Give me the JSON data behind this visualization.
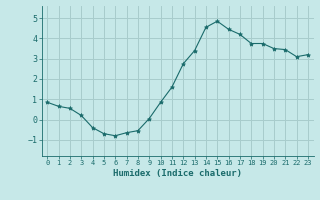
{
  "title": "",
  "xlabel": "Humidex (Indice chaleur)",
  "ylabel": "",
  "background_color": "#c6e8e8",
  "grid_color": "#a8cccc",
  "line_color": "#1a6b6b",
  "marker_color": "#1a6b6b",
  "xlim": [
    -0.5,
    23.5
  ],
  "ylim": [
    -1.8,
    5.6
  ],
  "yticks": [
    -1,
    0,
    1,
    2,
    3,
    4,
    5
  ],
  "xticks": [
    0,
    1,
    2,
    3,
    4,
    5,
    6,
    7,
    8,
    9,
    10,
    11,
    12,
    13,
    14,
    15,
    16,
    17,
    18,
    19,
    20,
    21,
    22,
    23
  ],
  "hours": [
    0,
    1,
    2,
    3,
    4,
    5,
    6,
    7,
    8,
    9,
    10,
    11,
    12,
    13,
    14,
    15,
    16,
    17,
    18,
    19,
    20,
    21,
    22,
    23
  ],
  "values": [
    0.85,
    0.65,
    0.55,
    0.2,
    -0.4,
    -0.7,
    -0.8,
    -0.65,
    -0.55,
    0.05,
    0.85,
    1.6,
    2.75,
    3.4,
    4.55,
    4.85,
    4.45,
    4.2,
    3.75,
    3.75,
    3.5,
    3.45,
    3.1,
    3.2
  ]
}
